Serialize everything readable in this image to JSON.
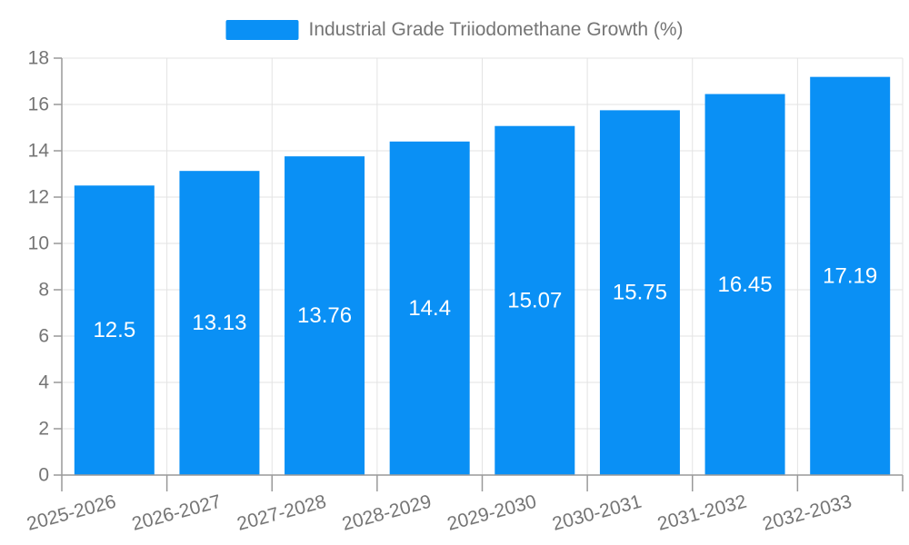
{
  "legend": {
    "label": "Industrial Grade Triiodomethane Growth (%)"
  },
  "chart_data": {
    "type": "bar",
    "title": "Industrial Grade Triiodomethane Growth (%)",
    "series_name": "Industrial Grade Triiodomethane Growth (%)",
    "categories": [
      "2025-2026",
      "2026-2027",
      "2027-2028",
      "2028-2029",
      "2029-2030",
      "2030-2031",
      "2031-2032",
      "2032-2033"
    ],
    "values": [
      12.5,
      13.13,
      13.76,
      14.4,
      15.07,
      15.75,
      16.45,
      17.19
    ],
    "xlabel": "",
    "ylabel": "",
    "ylim": [
      0,
      18
    ],
    "yticks": [
      0,
      2,
      4,
      6,
      8,
      10,
      12,
      14,
      16,
      18
    ],
    "grid": true,
    "legend_position": "top-center",
    "x_label_rotation": -15,
    "colors": {
      "bar": "#0a90f5",
      "value_label": "#ffffff",
      "axis_text": "#757575",
      "grid_line": "#e3e3e3",
      "axis_line": "#999999",
      "background": "#ffffff"
    }
  }
}
